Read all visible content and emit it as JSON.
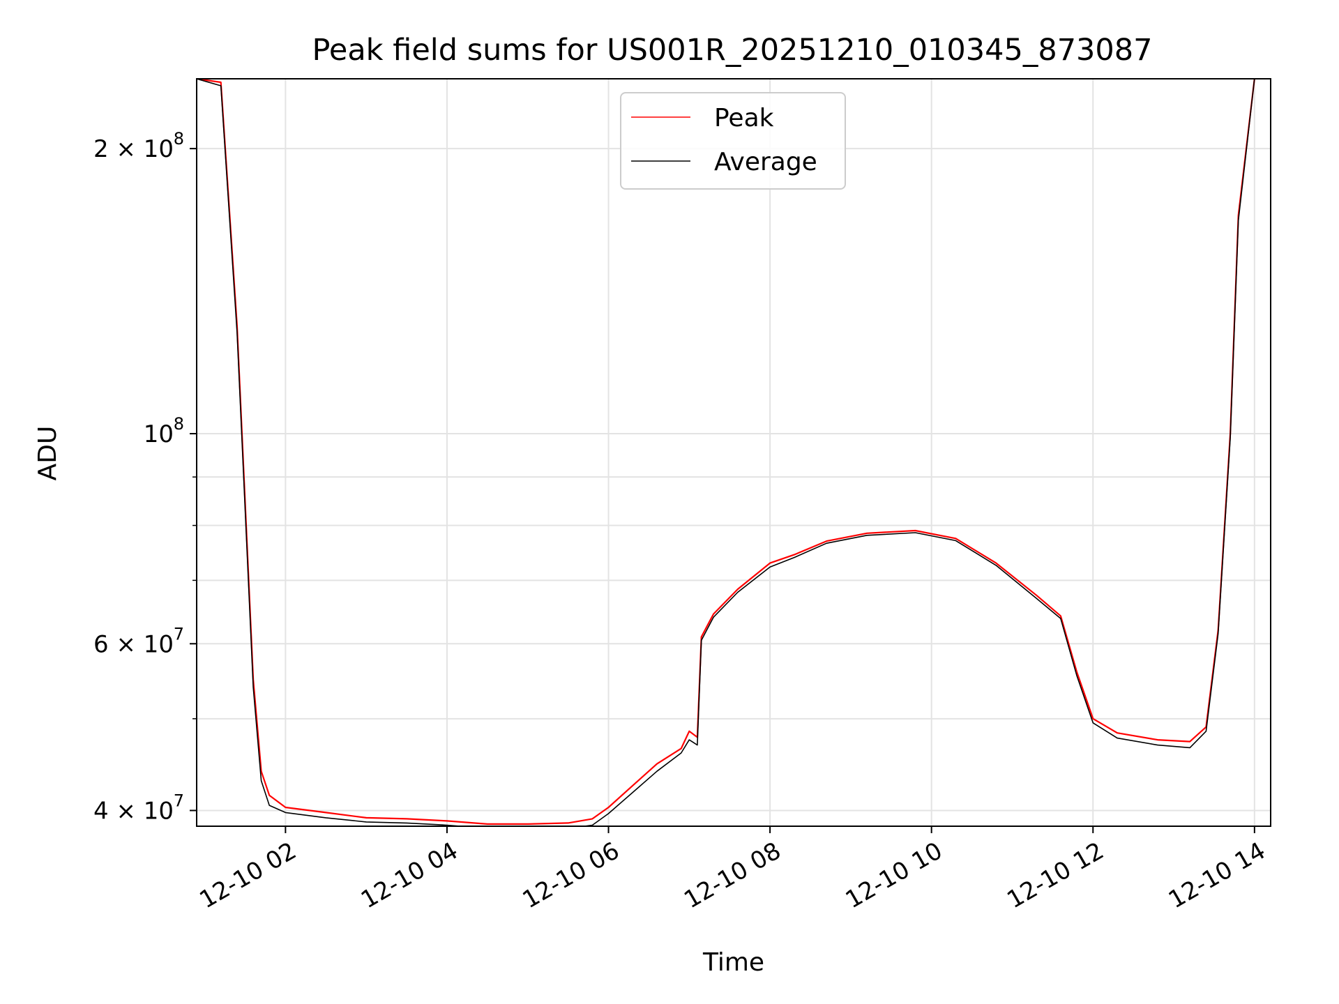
{
  "chart_data": {
    "type": "line",
    "title": "Peak field sums for US001R_20251210_010345_873087",
    "xlabel": "Time",
    "ylabel": "ADU",
    "yscale": "log",
    "ylim": [
      38500000,
      237000000
    ],
    "xlim": [
      0.9,
      14.2
    ],
    "grid": true,
    "legend_position": "top-center",
    "x_ticks": [
      {
        "value": 2,
        "label": "12-10 02"
      },
      {
        "value": 4,
        "label": "12-10 04"
      },
      {
        "value": 6,
        "label": "12-10 06"
      },
      {
        "value": 8,
        "label": "12-10 08"
      },
      {
        "value": 10,
        "label": "12-10 10"
      },
      {
        "value": 12,
        "label": "12-10 12"
      },
      {
        "value": 14,
        "label": "12-10 14"
      }
    ],
    "y_ticks": [
      {
        "value": 40000000,
        "label_base": "4 × 10",
        "label_exp": "7"
      },
      {
        "value": 60000000,
        "label_base": "6 × 10",
        "label_exp": "7"
      },
      {
        "value": 100000000,
        "label_base": "10",
        "label_exp": "8"
      },
      {
        "value": 200000000,
        "label_base": "2 × 10",
        "label_exp": "8"
      }
    ],
    "y_minor_ticks": [
      50000000,
      70000000,
      80000000,
      90000000
    ],
    "series": [
      {
        "name": "Peak",
        "color": "#ff0000",
        "x": [
          0.9,
          1.2,
          1.4,
          1.6,
          1.7,
          1.8,
          2.0,
          2.5,
          3.0,
          3.5,
          4.0,
          4.5,
          5.0,
          5.5,
          5.8,
          6.0,
          6.3,
          6.6,
          6.9,
          7.0,
          7.1,
          7.15,
          7.3,
          7.6,
          8.0,
          8.3,
          8.7,
          9.2,
          9.8,
          10.3,
          10.8,
          11.3,
          11.6,
          11.8,
          12.0,
          12.3,
          12.8,
          13.2,
          13.4,
          13.55,
          13.7,
          13.8,
          14.0
        ],
        "y": [
          237000000,
          235000000,
          130000000,
          55000000,
          44000000,
          41500000,
          40300000,
          39800000,
          39300000,
          39200000,
          39000000,
          38700000,
          38700000,
          38800000,
          39200000,
          40300000,
          42500000,
          44800000,
          46500000,
          48500000,
          47800000,
          61000000,
          64500000,
          68500000,
          73000000,
          74500000,
          77000000,
          78500000,
          79000000,
          77500000,
          73000000,
          67500000,
          64200000,
          56000000,
          50000000,
          48300000,
          47500000,
          47300000,
          49000000,
          62000000,
          100000000,
          170000000,
          237000000
        ]
      },
      {
        "name": "Average",
        "color": "#000000",
        "x": [
          0.9,
          1.2,
          1.4,
          1.6,
          1.7,
          1.8,
          2.0,
          2.5,
          3.0,
          3.5,
          4.0,
          4.5,
          5.0,
          5.5,
          5.8,
          6.0,
          6.3,
          6.6,
          6.9,
          7.0,
          7.1,
          7.15,
          7.3,
          7.6,
          8.0,
          8.3,
          8.7,
          9.2,
          9.8,
          10.3,
          10.8,
          11.3,
          11.6,
          11.8,
          12.0,
          12.3,
          12.8,
          13.2,
          13.4,
          13.55,
          13.7,
          13.8,
          14.0
        ],
        "y": [
          237000000,
          233000000,
          128000000,
          54000000,
          43000000,
          40500000,
          39800000,
          39300000,
          38900000,
          38800000,
          38600000,
          38300000,
          38200000,
          38300000,
          38600000,
          39700000,
          41800000,
          44000000,
          46000000,
          47500000,
          46900000,
          60500000,
          64000000,
          68000000,
          72300000,
          74000000,
          76600000,
          78100000,
          78600000,
          77100000,
          72600000,
          67000000,
          63800000,
          55500000,
          49500000,
          47700000,
          46900000,
          46600000,
          48500000,
          61500000,
          99000000,
          168000000,
          237000000
        ]
      }
    ]
  }
}
